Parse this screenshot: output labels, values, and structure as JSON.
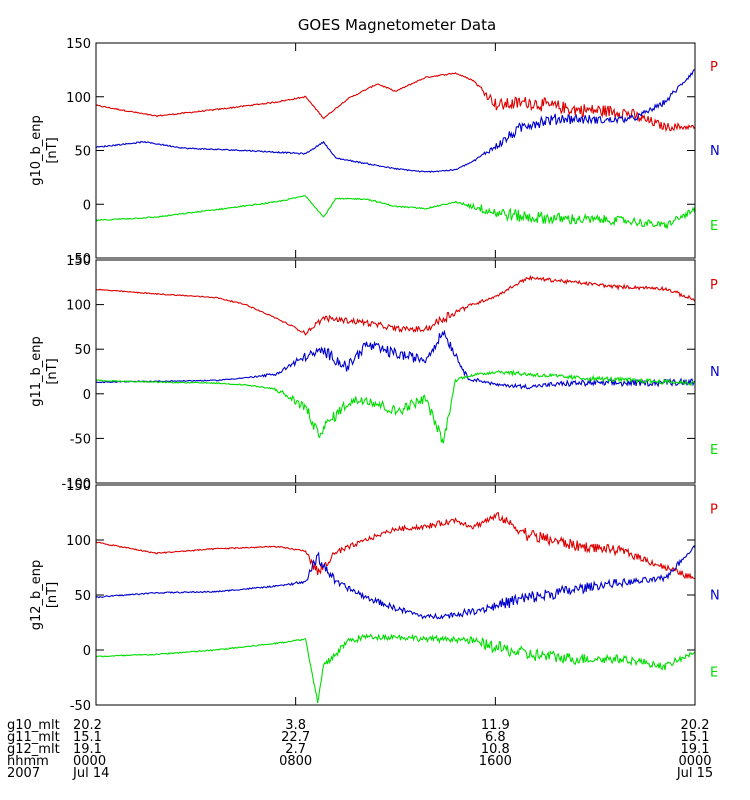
{
  "chart_data": {
    "type": "line",
    "title": "GOES Magnetometer Data",
    "panels": [
      {
        "ylabel": "g10_b_enp",
        "unit": "[nT]",
        "ylim": [
          -50,
          150
        ],
        "yticks": [
          "150",
          "100",
          "50",
          "0",
          "-50"
        ],
        "legend": [
          "P",
          "N",
          "E"
        ],
        "series": [
          {
            "name": "P",
            "color": "#dd0000",
            "x": [
              0,
              0.1,
              0.2,
              0.3,
              0.35,
              0.38,
              0.42,
              0.47,
              0.5,
              0.55,
              0.6,
              0.63,
              0.67,
              0.72,
              0.8,
              0.88,
              0.95,
              1
            ],
            "values": [
              92,
              82,
              88,
              95,
              100,
              80,
              98,
              112,
              105,
              118,
              122,
              115,
              92,
              95,
              88,
              86,
              72,
              72
            ],
            "noise": [
              0,
              0,
              0,
              0,
              0,
              0,
              0,
              0,
              0,
              0,
              0,
              0,
              1,
              1,
              1,
              1,
              0.6,
              0.4
            ]
          },
          {
            "name": "N",
            "color": "#0000cc",
            "x": [
              0,
              0.08,
              0.15,
              0.25,
              0.35,
              0.38,
              0.4,
              0.45,
              0.5,
              0.55,
              0.6,
              0.63,
              0.67,
              0.72,
              0.78,
              0.85,
              0.9,
              0.95,
              1
            ],
            "values": [
              53,
              58,
              52,
              50,
              47,
              58,
              43,
              38,
              33,
              30,
              32,
              40,
              55,
              75,
              80,
              78,
              80,
              95,
              125
            ],
            "noise": [
              0,
              0,
              0,
              0,
              0,
              0,
              0,
              0,
              0,
              0,
              0,
              0,
              0.6,
              1,
              0.8,
              0.6,
              0.4,
              0.4,
              0.3
            ]
          },
          {
            "name": "E",
            "color": "#00dd00",
            "x": [
              0,
              0.1,
              0.2,
              0.3,
              0.35,
              0.38,
              0.4,
              0.45,
              0.5,
              0.55,
              0.6,
              0.63,
              0.67,
              0.72,
              0.8,
              0.88,
              0.95,
              1
            ],
            "values": [
              -15,
              -12,
              -5,
              2,
              8,
              -12,
              5,
              5,
              -2,
              -4,
              2,
              -2,
              -8,
              -12,
              -14,
              -15,
              -20,
              -5
            ],
            "noise": [
              0,
              0,
              0,
              0,
              0,
              0,
              0,
              0,
              0,
              0,
              0,
              0.5,
              1,
              1,
              0.8,
              0.6,
              0.6,
              0.4
            ]
          }
        ]
      },
      {
        "ylabel": "g11_b_enp",
        "unit": "[nT]",
        "ylim": [
          -100,
          150
        ],
        "yticks": [
          "150",
          "100",
          "50",
          "0",
          "-50",
          "-100"
        ],
        "legend": [
          "P",
          "N",
          "E"
        ],
        "series": [
          {
            "name": "P",
            "color": "#dd0000",
            "x": [
              0,
              0.1,
              0.2,
              0.25,
              0.3,
              0.35,
              0.38,
              0.45,
              0.5,
              0.55,
              0.58,
              0.62,
              0.67,
              0.72,
              0.8,
              0.87,
              0.95,
              1
            ],
            "values": [
              117,
              112,
              108,
              100,
              85,
              68,
              85,
              80,
              73,
              72,
              85,
              98,
              110,
              130,
              125,
              120,
              118,
              105
            ],
            "noise": [
              0,
              0,
              0,
              0,
              0,
              0.3,
              0.5,
              0.5,
              0.5,
              0.5,
              1,
              0.3,
              0.2,
              0.3,
              0.3,
              0.3,
              0.3,
              0.3
            ]
          },
          {
            "name": "N",
            "color": "#0000cc",
            "x": [
              0,
              0.1,
              0.2,
              0.25,
              0.3,
              0.35,
              0.38,
              0.42,
              0.45,
              0.5,
              0.55,
              0.58,
              0.62,
              0.67,
              0.72,
              0.8,
              0.9,
              1
            ],
            "values": [
              13,
              14,
              15,
              18,
              22,
              42,
              48,
              30,
              55,
              45,
              38,
              70,
              18,
              10,
              8,
              12,
              12,
              14
            ],
            "noise": [
              0,
              0,
              0,
              0,
              0.3,
              0.8,
              1,
              1,
              1,
              1,
              0.8,
              1,
              0.4,
              0.2,
              0.4,
              0.5,
              0.6,
              0.6
            ]
          },
          {
            "name": "E",
            "color": "#00dd00",
            "x": [
              0,
              0.1,
              0.2,
              0.25,
              0.3,
              0.35,
              0.37,
              0.42,
              0.45,
              0.5,
              0.55,
              0.58,
              0.6,
              0.62,
              0.67,
              0.72,
              0.8,
              0.9,
              1
            ],
            "values": [
              15,
              13,
              12,
              10,
              5,
              -15,
              -45,
              -10,
              -5,
              -20,
              -5,
              -55,
              15,
              20,
              25,
              22,
              18,
              15,
              12
            ],
            "noise": [
              0,
              0,
              0,
              0,
              0.3,
              1,
              1,
              1,
              1,
              1,
              0.8,
              1,
              0.4,
              0.2,
              0.3,
              0.4,
              0.4,
              0.4,
              0.4
            ]
          }
        ]
      },
      {
        "ylabel": "g12_b_enp",
        "unit": "[nT]",
        "ylim": [
          -50,
          150
        ],
        "yticks": [
          "150",
          "100",
          "50",
          "0",
          "-50"
        ],
        "legend": [
          "P",
          "N",
          "E"
        ],
        "series": [
          {
            "name": "P",
            "color": "#dd0000",
            "x": [
              0,
              0.1,
              0.2,
              0.3,
              0.35,
              0.37,
              0.4,
              0.45,
              0.5,
              0.55,
              0.6,
              0.63,
              0.67,
              0.72,
              0.8,
              0.88,
              0.95,
              1
            ],
            "values": [
              98,
              88,
              92,
              94,
              90,
              70,
              88,
              100,
              110,
              112,
              118,
              112,
              122,
              105,
              95,
              90,
              75,
              65
            ],
            "noise": [
              0,
              0,
              0,
              0,
              0,
              1,
              0.5,
              0.3,
              0.3,
              0.4,
              0.4,
              0.4,
              0.5,
              1,
              0.8,
              0.6,
              0.5,
              0.4
            ]
          },
          {
            "name": "N",
            "color": "#0000cc",
            "x": [
              0,
              0.1,
              0.2,
              0.3,
              0.35,
              0.37,
              0.4,
              0.45,
              0.5,
              0.55,
              0.6,
              0.65,
              0.7,
              0.75,
              0.8,
              0.85,
              0.9,
              0.95,
              1
            ],
            "values": [
              48,
              52,
              53,
              58,
              62,
              85,
              62,
              48,
              38,
              30,
              32,
              38,
              45,
              50,
              55,
              60,
              62,
              65,
              95
            ],
            "noise": [
              0,
              0,
              0,
              0,
              0.2,
              1,
              0.5,
              0.4,
              0.4,
              0.3,
              0.4,
              0.6,
              1,
              1,
              0.8,
              0.6,
              0.5,
              0.4,
              0.3
            ]
          },
          {
            "name": "E",
            "color": "#00dd00",
            "x": [
              0,
              0.1,
              0.2,
              0.3,
              0.35,
              0.37,
              0.38,
              0.42,
              0.45,
              0.5,
              0.55,
              0.6,
              0.63,
              0.67,
              0.72,
              0.8,
              0.88,
              0.95,
              1
            ],
            "values": [
              -6,
              -4,
              0,
              6,
              10,
              -48,
              -15,
              8,
              12,
              12,
              10,
              10,
              8,
              2,
              -4,
              -8,
              -8,
              -15,
              -2
            ],
            "noise": [
              0,
              0,
              0,
              0,
              0,
              0.5,
              0.6,
              0.5,
              0.4,
              0.4,
              0.4,
              0.4,
              0.6,
              1,
              1,
              0.8,
              0.6,
              0.5,
              0.3
            ]
          }
        ]
      }
    ],
    "x_ticks": [
      {
        "pos": 0,
        "g10_mlt": "20.2",
        "g11_mlt": "15.1",
        "g12_mlt": "19.1",
        "hhmm": "0000",
        "date": "Jul 14"
      },
      {
        "pos": 0.3333,
        "g10_mlt": "3.8",
        "g11_mlt": "22.7",
        "g12_mlt": "2.7",
        "hhmm": "0800",
        "date": ""
      },
      {
        "pos": 0.6667,
        "g10_mlt": "11.9",
        "g11_mlt": "6.8",
        "g12_mlt": "10.8",
        "hhmm": "1600",
        "date": ""
      },
      {
        "pos": 1,
        "g10_mlt": "20.2",
        "g11_mlt": "15.1",
        "g12_mlt": "19.1",
        "hhmm": "0000",
        "date": "Jul 15"
      }
    ],
    "footer_labels": [
      "g10_mlt",
      "g11_mlt",
      "g12_mlt",
      "hhmm",
      "2007"
    ]
  }
}
